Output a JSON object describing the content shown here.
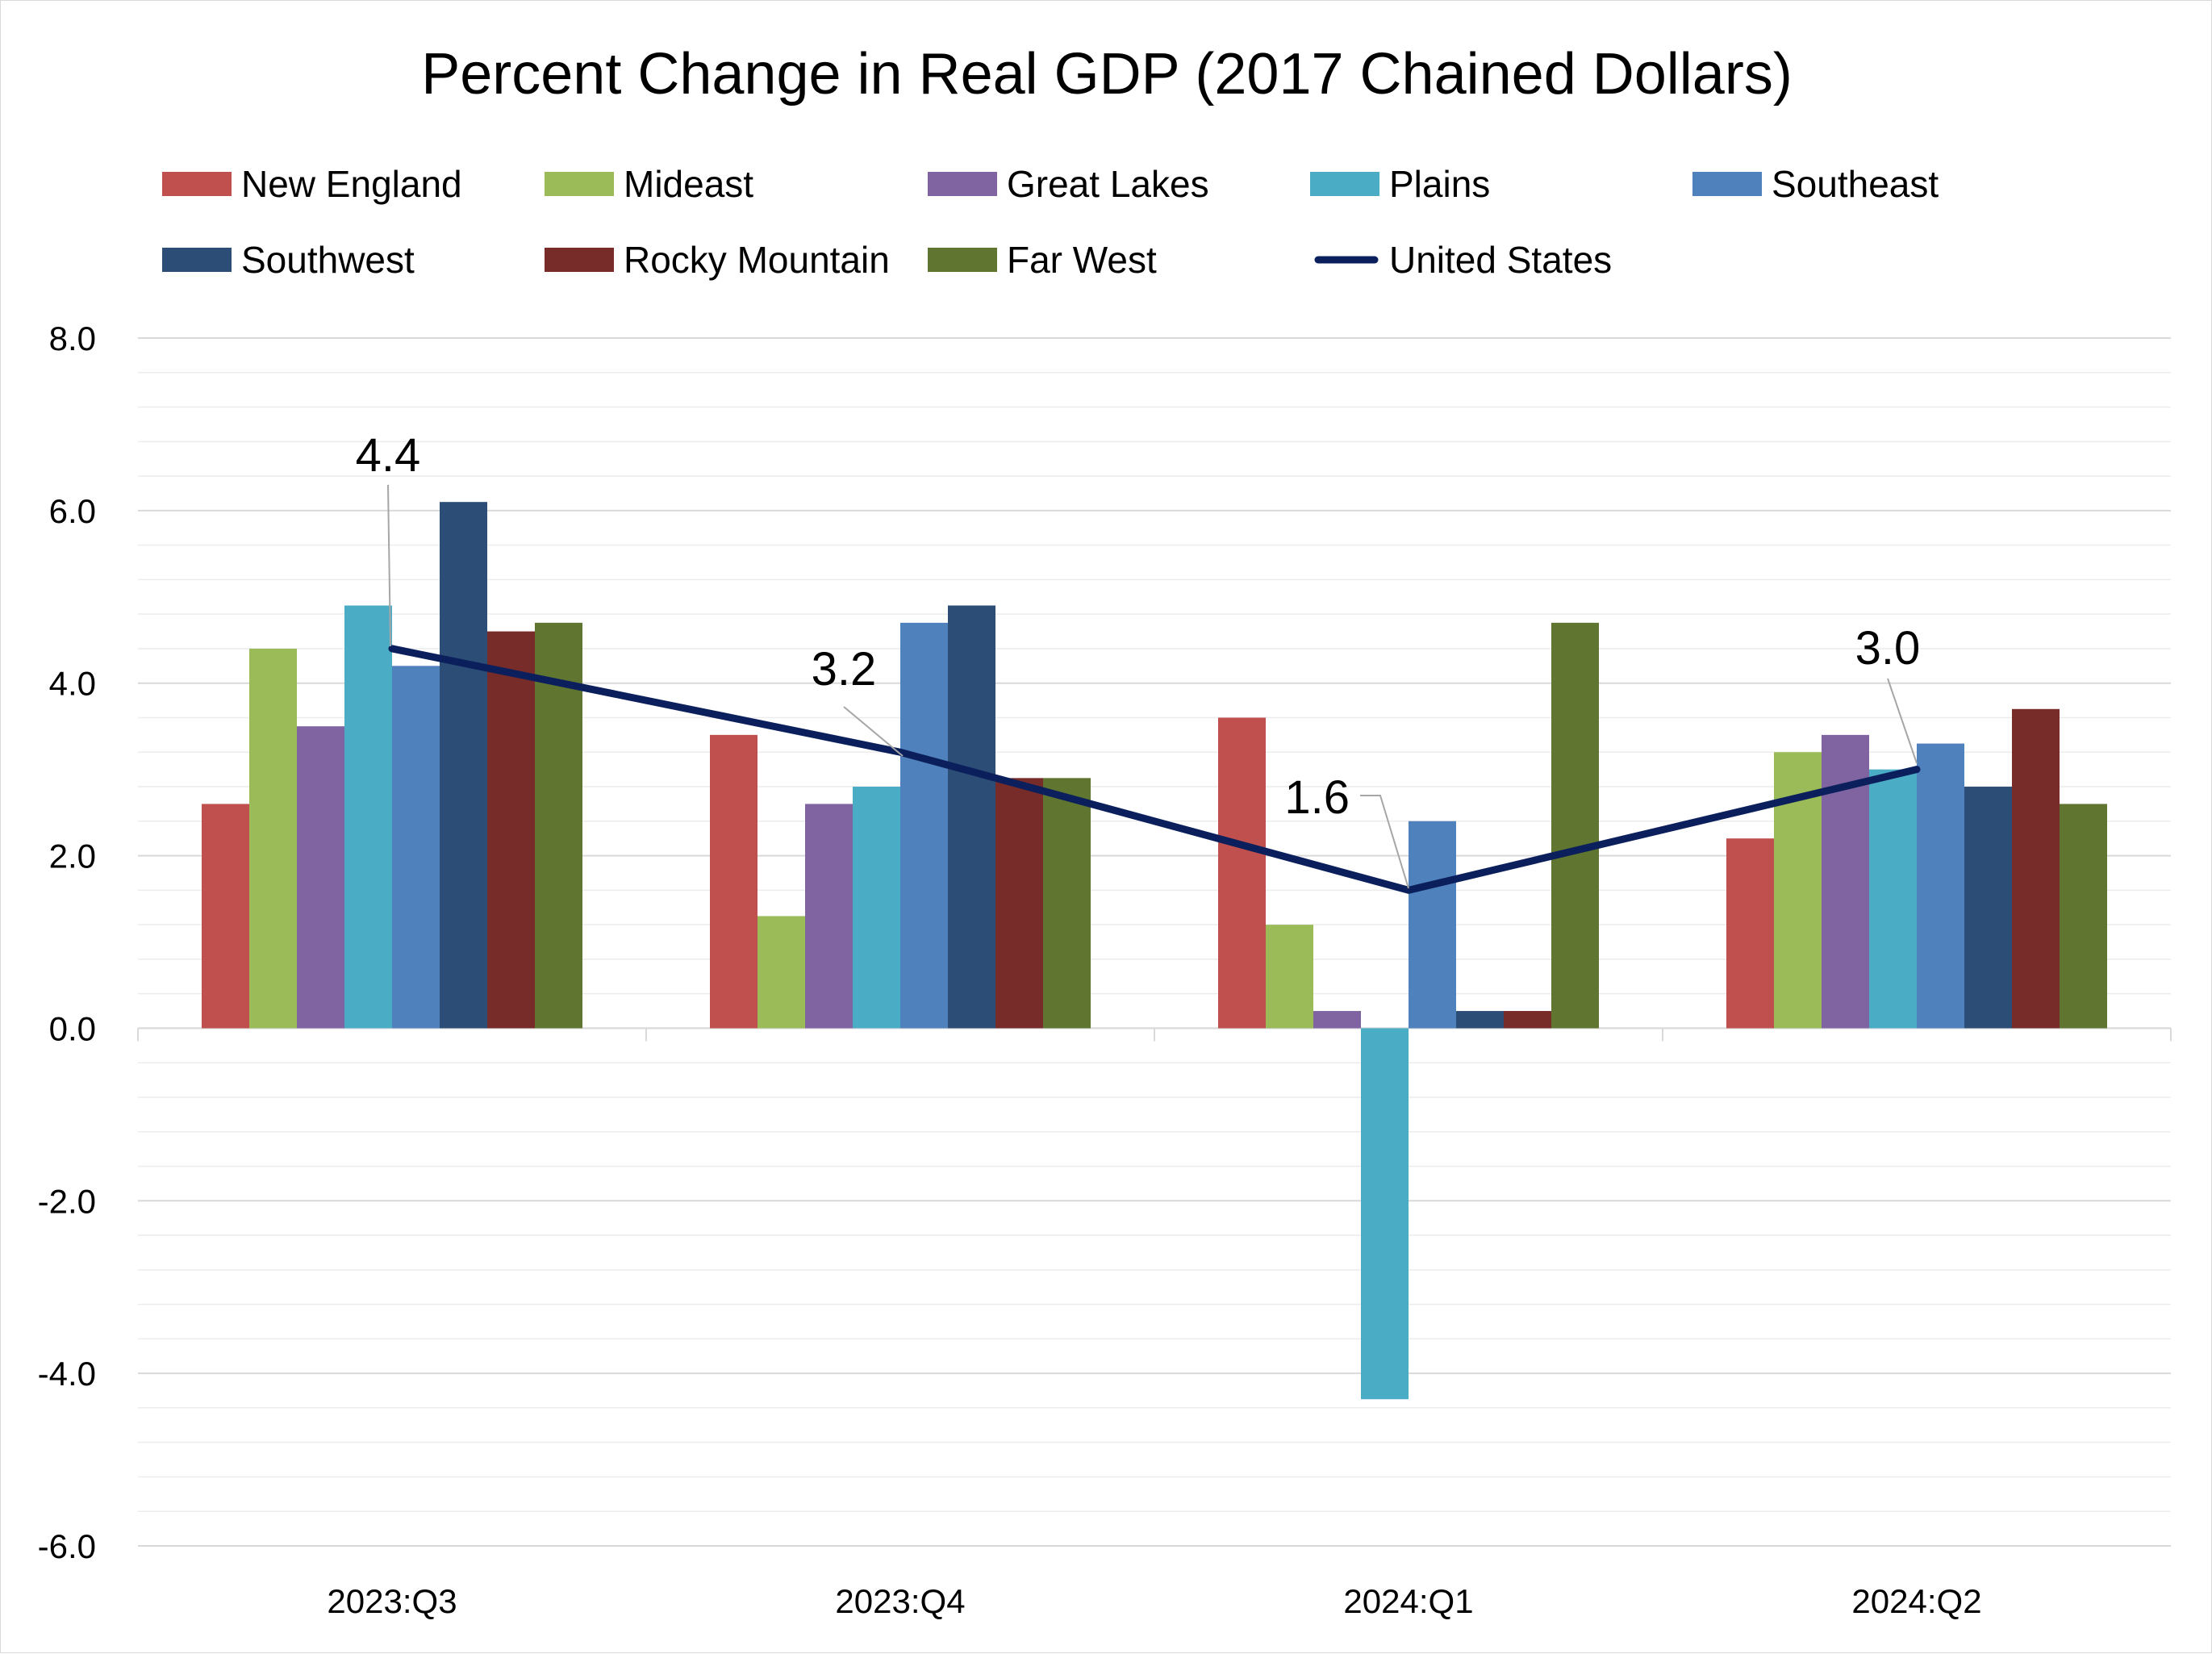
{
  "chart_data": {
    "type": "bar",
    "title": "Percent Change in Real GDP (2017 Chained Dollars)",
    "xlabel": "",
    "ylabel": "",
    "categories": [
      "2023:Q3",
      "2023:Q4",
      "2024:Q1",
      "2024:Q2"
    ],
    "ylim": [
      -6.0,
      8.0
    ],
    "yticks": [
      "8.0",
      "6.0",
      "4.0",
      "2.0",
      "0.0",
      "-2.0",
      "-4.0",
      "-6.0"
    ],
    "ytick_values": [
      8,
      6,
      4,
      2,
      0,
      -2,
      -4,
      -6
    ],
    "grid": true,
    "legend_position": "top",
    "series": [
      {
        "name": "New England",
        "color": "#c0504d",
        "values": [
          2.6,
          3.4,
          3.6,
          2.2
        ]
      },
      {
        "name": "Mideast",
        "color": "#9bbb59",
        "values": [
          4.4,
          1.3,
          1.2,
          3.2
        ]
      },
      {
        "name": "Great Lakes",
        "color": "#8064a2",
        "values": [
          3.5,
          2.6,
          0.2,
          3.4
        ]
      },
      {
        "name": "Plains",
        "color": "#4bacc6",
        "values": [
          4.9,
          2.8,
          -4.3,
          3.0
        ]
      },
      {
        "name": "Southeast",
        "color": "#4f81bd",
        "values": [
          4.2,
          4.7,
          2.4,
          3.3
        ]
      },
      {
        "name": "Southwest",
        "color": "#2c4d75",
        "values": [
          6.1,
          4.9,
          0.2,
          2.8
        ]
      },
      {
        "name": "Rocky Mountain",
        "color": "#772c2a",
        "values": [
          4.6,
          2.9,
          0.2,
          3.7
        ]
      },
      {
        "name": "Far West",
        "color": "#5f7530",
        "values": [
          4.7,
          2.9,
          4.7,
          2.6
        ]
      }
    ],
    "line_series": {
      "name": "United States",
      "color": "#0b1f5c",
      "values": [
        4.4,
        3.2,
        1.6,
        3.0
      ],
      "labels": [
        "4.4",
        "3.2",
        "1.6",
        "3.0"
      ]
    }
  }
}
